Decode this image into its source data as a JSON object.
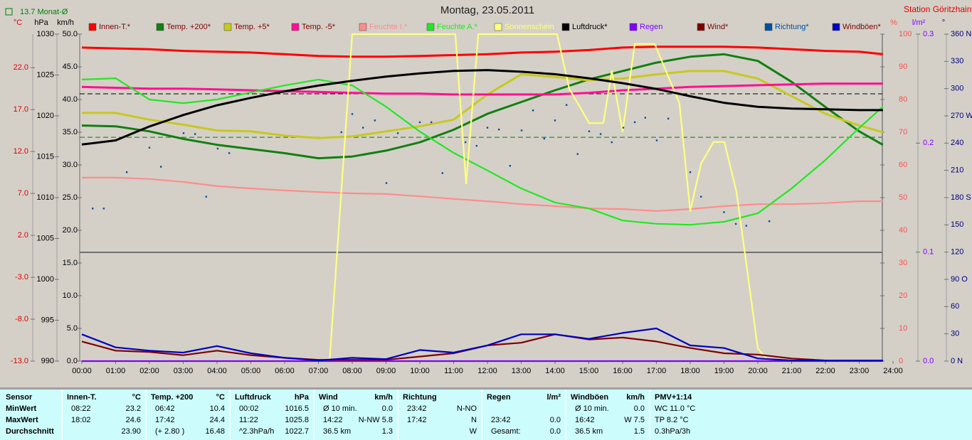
{
  "chart_data": {
    "type": "line",
    "title": "Montag, 23.05.2011",
    "station": "Station Göritzhain",
    "x": [
      0,
      1,
      2,
      3,
      4,
      5,
      6,
      7,
      8,
      9,
      10,
      11,
      12,
      13,
      14,
      15,
      16,
      17,
      18,
      19,
      20,
      21,
      22,
      23,
      23.7
    ],
    "xlim": [
      0,
      24
    ],
    "xticks": [
      {
        "value": 0,
        "label": "00:00"
      },
      {
        "value": 1,
        "label": "01:00"
      },
      {
        "value": 2,
        "label": "02:00"
      },
      {
        "value": 3,
        "label": "03:00"
      },
      {
        "value": 4,
        "label": "04:00"
      },
      {
        "value": 5,
        "label": "05:00"
      },
      {
        "value": 6,
        "label": "06:00"
      },
      {
        "value": 7,
        "label": "07:00"
      },
      {
        "value": 8,
        "label": "08:00"
      },
      {
        "value": 9,
        "label": "09:00"
      },
      {
        "value": 10,
        "label": "10:00"
      },
      {
        "value": 11,
        "label": "11:00"
      },
      {
        "value": 12,
        "label": "12:00"
      },
      {
        "value": 13,
        "label": "13:00"
      },
      {
        "value": 14,
        "label": "14:00"
      },
      {
        "value": 15,
        "label": "15:00"
      },
      {
        "value": 16,
        "label": "16:00"
      },
      {
        "value": 17,
        "label": "17:00"
      },
      {
        "value": 18,
        "label": "18:00"
      },
      {
        "value": 19,
        "label": "19:00"
      },
      {
        "value": 20,
        "label": "20:00"
      },
      {
        "value": 21,
        "label": "21:00"
      },
      {
        "value": 22,
        "label": "22:00"
      },
      {
        "value": 23,
        "label": "23:00"
      },
      {
        "value": 24,
        "label": "24:00"
      }
    ],
    "axes": [
      {
        "label": "°C",
        "color": "#e00000",
        "lim": [
          -13,
          26
        ],
        "ticks": [
          {
            "value": 22,
            "label": "22.0"
          },
          {
            "value": 17,
            "label": "17.0"
          },
          {
            "value": 12,
            "label": "12.0"
          },
          {
            "value": 7,
            "label": "7.0"
          },
          {
            "value": 2,
            "label": "2.0"
          },
          {
            "value": -3,
            "label": "-3.0"
          },
          {
            "value": -8,
            "label": "-8.0"
          },
          {
            "value": -13,
            "label": "-13.0"
          }
        ]
      },
      {
        "label": "hPa",
        "color": "#000000",
        "lim": [
          990,
          1030
        ],
        "ticks": [
          1030,
          1025,
          1020,
          1015,
          1010,
          1005,
          1000,
          995,
          990
        ]
      },
      {
        "label": "km/h",
        "color": "#000000",
        "lim": [
          0,
          50
        ],
        "ticks": [
          {
            "value": 50,
            "label": "50.0"
          },
          {
            "value": 45,
            "label": "45.0"
          },
          {
            "value": 40,
            "label": "40.0"
          },
          {
            "value": 35,
            "label": "35.0"
          },
          {
            "value": 30,
            "label": "30.0"
          },
          {
            "value": 25,
            "label": "25.0"
          },
          {
            "value": 20,
            "label": "20.0"
          },
          {
            "value": 15,
            "label": "15.0"
          },
          {
            "value": 10,
            "label": "10.0"
          },
          {
            "value": 5,
            "label": "5.0"
          },
          {
            "value": 0,
            "label": "0.0"
          }
        ]
      },
      {
        "label": "%",
        "color": "#ff5050",
        "lim": [
          0,
          100
        ],
        "ticks": [
          100,
          90,
          80,
          70,
          60,
          50,
          40,
          30,
          20,
          10,
          0
        ]
      },
      {
        "label": "l/m²",
        "color": "#8000ff",
        "lim": [
          0,
          0.3
        ],
        "ticks": [
          0.3,
          0.2,
          0.1,
          {
            "value": 0,
            "label": "0.0"
          }
        ]
      },
      {
        "label": "°",
        "color": "#000080",
        "lim": [
          0,
          360
        ],
        "ticks": [
          {
            "value": 360,
            "label": "360 N"
          },
          330,
          300,
          {
            "value": 270,
            "label": "270 W"
          },
          240,
          210,
          {
            "value": 180,
            "label": "180 S"
          },
          150,
          120,
          {
            "value": 90,
            "label": "90 O"
          },
          60,
          30,
          {
            "value": 0,
            "label": "0 N"
          }
        ]
      }
    ],
    "reference_lines": [
      {
        "value": 13.7,
        "label": "13.7 Monat-Ø",
        "axis": "°C",
        "color": "#008000"
      },
      {
        "value": 1022.7,
        "axis": "hPa",
        "color": "#000000"
      }
    ],
    "series": [
      {
        "name": "Innen-T.*",
        "color": "#ff0000",
        "text_color": "#800000",
        "axis": "°C",
        "values": [
          24.4,
          24.3,
          24.2,
          24.0,
          23.9,
          23.8,
          23.6,
          23.4,
          23.3,
          23.3,
          23.4,
          23.5,
          23.6,
          23.8,
          23.9,
          24.1,
          24.4,
          24.5,
          24.5,
          24.5,
          24.4,
          24.2,
          24.0,
          23.9,
          23.6
        ]
      },
      {
        "name": "Temp. +200*",
        "color": "#108010",
        "text_color": "#800000",
        "axis": "°C",
        "values": [
          15.1,
          15.0,
          14.4,
          13.5,
          12.8,
          12.3,
          11.8,
          11.2,
          11.4,
          12.1,
          13.1,
          14.6,
          16.5,
          17.9,
          19.3,
          20.6,
          21.6,
          22.6,
          23.3,
          23.6,
          22.8,
          20.3,
          17.3,
          14.4,
          12.8
        ]
      },
      {
        "name": "Temp. +5*",
        "color": "#c8c820",
        "text_color": "#800000",
        "axis": "°C",
        "values": [
          16.6,
          16.6,
          15.8,
          15.2,
          14.5,
          14.4,
          13.9,
          13.6,
          13.8,
          14.4,
          15.0,
          15.8,
          18.8,
          21.2,
          20.9,
          20.5,
          20.7,
          21.2,
          21.6,
          21.6,
          20.7,
          18.6,
          16.5,
          15.1,
          14.3
        ]
      },
      {
        "name": "Temp. -5*",
        "color": "#ff1090",
        "text_color": "#800000",
        "axis": "°C",
        "values": [
          19.7,
          19.6,
          19.5,
          19.5,
          19.4,
          19.3,
          19.2,
          19.1,
          19.0,
          18.9,
          18.9,
          18.8,
          18.8,
          18.8,
          18.8,
          19.0,
          19.3,
          19.5,
          19.7,
          19.8,
          19.9,
          20.0,
          20.1,
          20.1,
          20.1
        ]
      },
      {
        "name": "Feuchte I.*",
        "color": "#ff8c8c",
        "text_color": "#ff8c8c",
        "axis": "%",
        "values": [
          56.1,
          56.1,
          55.7,
          54.8,
          53.5,
          52.8,
          52.2,
          51.7,
          51.3,
          51.1,
          50.4,
          49.6,
          48.9,
          48.0,
          47.4,
          46.7,
          46.5,
          45.9,
          46.5,
          47.4,
          48.0,
          48.0,
          48.3,
          48.9,
          48.9
        ]
      },
      {
        "name": "Feuchte A.*",
        "color": "#20e820",
        "text_color": "#20e820",
        "axis": "%",
        "values": [
          86.1,
          86.5,
          80.0,
          78.9,
          80.0,
          82.2,
          84.3,
          86.1,
          84.3,
          77.8,
          70.2,
          63.7,
          58.3,
          52.8,
          48.5,
          46.7,
          43.0,
          42.0,
          41.7,
          42.6,
          45.2,
          52.8,
          61.5,
          71.3,
          77.8
        ]
      },
      {
        "name": "Sonnenschein",
        "color": "#ffff80",
        "text_color": "#ffff80",
        "axis": "%",
        "x": [
          0,
          7.33,
          8.0,
          11.05,
          11.37,
          11.73,
          14.06,
          14.42,
          15.01,
          15.43,
          15.68,
          16.0,
          16.36,
          16.95,
          17.68,
          18.0,
          18.32,
          18.69,
          19.01,
          19.37,
          20.0,
          20.32,
          23.7
        ],
        "values": [
          0,
          0,
          100,
          100,
          54.3,
          100,
          100,
          83.3,
          72.8,
          72.8,
          88.7,
          70.2,
          97,
          97,
          78.9,
          45.9,
          60.4,
          67,
          67,
          51.7,
          3.9,
          0,
          0
        ]
      },
      {
        "name": "Luftdruck*",
        "color": "#000000",
        "text_color": "#000000",
        "axis": "hPa",
        "values": [
          1016.5,
          1017.0,
          1018.7,
          1020.1,
          1021.3,
          1022.2,
          1023.0,
          1023.7,
          1024.3,
          1024.8,
          1025.2,
          1025.5,
          1025.6,
          1025.4,
          1025.1,
          1024.6,
          1024.0,
          1023.3,
          1022.4,
          1021.6,
          1021.1,
          1020.9,
          1020.8,
          1020.7,
          1020.7
        ]
      },
      {
        "name": "Regen",
        "color": "#8000ff",
        "text_color": "#8000ff",
        "axis": "l/m²",
        "x": [
          0,
          23.7
        ],
        "values": [
          0,
          0
        ]
      },
      {
        "name": "Wind*",
        "color": "#800000",
        "text_color": "#800000",
        "axis": "km/h",
        "values": [
          3.0,
          1.6,
          1.4,
          0.9,
          1.6,
          0.9,
          0.5,
          0.2,
          0.2,
          0.2,
          0.7,
          1.2,
          2.4,
          2.8,
          4.1,
          3.3,
          3.6,
          3.0,
          2.0,
          1.2,
          1.0,
          0.4,
          0.1,
          0.1,
          0.1
        ]
      },
      {
        "name": "Richtung*",
        "color": "#0050a0",
        "text_color": "#0050a0",
        "axis": "°",
        "style": "dots",
        "x": [
          0.32,
          0.65,
          1.33,
          2.0,
          2.34,
          3.01,
          3.35,
          3.68,
          4.02,
          4.36,
          7.68,
          8.0,
          8.32,
          8.67,
          9.01,
          9.35,
          10.0,
          10.34,
          10.67,
          11.35,
          11.68,
          12.0,
          12.34,
          12.67,
          13.01,
          13.35,
          13.68,
          14.0,
          14.34,
          14.67,
          15.01,
          15.35,
          15.68,
          16.02,
          16.36,
          16.67,
          17.01,
          17.35,
          18.0,
          18.32,
          19.0,
          19.35,
          19.66,
          20.34
        ],
        "values": [
          168,
          168,
          208,
          235,
          214,
          251,
          250,
          181,
          234,
          229,
          252,
          272,
          257,
          265,
          196,
          251,
          263,
          263,
          207,
          241,
          237,
          257,
          255,
          215,
          254,
          276,
          245,
          265,
          282,
          228,
          253,
          250,
          241,
          257,
          263,
          268,
          243,
          267,
          208,
          181,
          164,
          151,
          149,
          154
        ]
      },
      {
        "name": "Windböen*",
        "color": "#0000c0",
        "text_color": "#800000",
        "axis": "km/h",
        "values": [
          4.1,
          2.1,
          1.6,
          1.3,
          2.3,
          1.2,
          0.5,
          0.1,
          0.5,
          0.3,
          1.7,
          1.3,
          2.4,
          4.1,
          4.1,
          3.4,
          4.3,
          5.0,
          2.4,
          2.0,
          0.4,
          0.1,
          0.1,
          0.1,
          0.1
        ]
      }
    ]
  },
  "table": {
    "row_labels": [
      "Sensor",
      "MinWert",
      "MaxWert",
      "Durchschnitt"
    ],
    "groups": [
      {
        "header": [
          "Innen-T.",
          "°C"
        ],
        "rows": [
          [
            "08:22",
            "23.2"
          ],
          [
            "18:02",
            "24.6"
          ],
          [
            null,
            "23.90"
          ]
        ]
      },
      {
        "header": [
          "Temp. +200",
          "°C"
        ],
        "rows": [
          [
            "06:42",
            "10.4"
          ],
          [
            "17:42",
            "24.4"
          ],
          [
            "(+ 2.80 )",
            "16.48"
          ]
        ]
      },
      {
        "header": [
          "Luftdruck",
          "hPa"
        ],
        "rows": [
          [
            "00:02",
            "1016.5"
          ],
          [
            "11:22",
            "1025.8"
          ],
          [
            "^2.3hPa/h",
            "1022.7"
          ]
        ]
      },
      {
        "header": [
          "Wind",
          "km/h"
        ],
        "rows": [
          [
            "Ø 10 min.",
            "0.0"
          ],
          [
            "14:22",
            "N-NW 5.8"
          ],
          [
            "36.5 km",
            "1.3"
          ]
        ]
      },
      {
        "header": [
          "Richtung"
        ],
        "rows": [
          [
            "23:42",
            "N-NO"
          ],
          [
            "17:42",
            "N"
          ],
          [
            null,
            "W"
          ]
        ]
      },
      {
        "header": [
          "Regen",
          "l/m²"
        ],
        "rows": [
          [
            null,
            null
          ],
          [
            "23:42",
            "0.0"
          ],
          [
            "Gesamt:",
            "0.0"
          ]
        ]
      },
      {
        "header": [
          "Windböen",
          "km/h"
        ],
        "rows": [
          [
            "Ø 10 min.",
            "0.0"
          ],
          [
            "16:42",
            "W 7.5"
          ],
          [
            "36.5 km",
            "1.5"
          ]
        ]
      },
      {
        "header": [
          "PMV+1:14"
        ],
        "rows": [
          [
            "WC 11.0 °C"
          ],
          [
            "TP 8.2 °C"
          ],
          [
            "0.3hPa/3h"
          ]
        ]
      }
    ]
  }
}
